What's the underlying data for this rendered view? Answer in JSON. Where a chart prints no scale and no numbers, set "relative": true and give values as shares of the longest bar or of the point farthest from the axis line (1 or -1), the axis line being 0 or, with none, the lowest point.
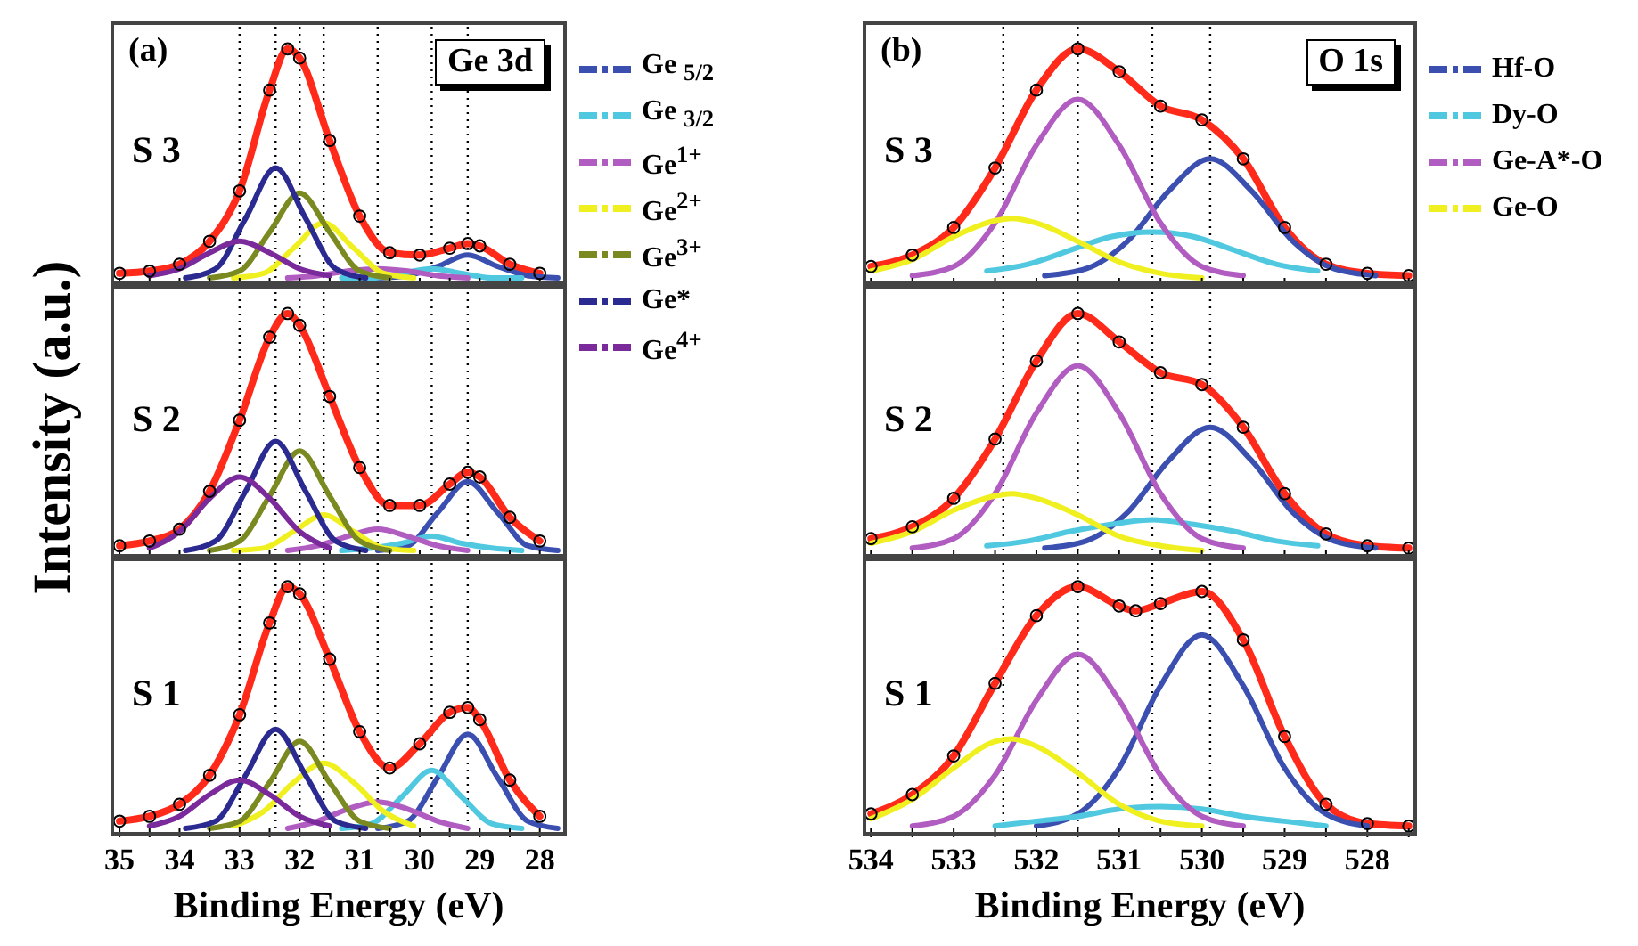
{
  "chart_data": [
    {
      "type": "line",
      "title": "(a)",
      "subtitle": "Ge 3d",
      "ylabel": "Intensity (a.u.)",
      "annotations": [
        "S 3"
      ],
      "relative": true,
      "legend": "right",
      "tick_labels": false,
      "marker": "none",
      "xlim": [
        35.15,
        27.55
      ],
      "xticks": [
        35,
        {
          "value": 34.5,
          "label": null
        },
        34,
        {
          "value": 33.5,
          "label": null
        },
        33,
        {
          "value": 32.5,
          "label": null
        },
        32,
        {
          "value": 31.5,
          "label": null
        },
        31,
        {
          "value": 30.5,
          "label": null
        },
        30,
        {
          "value": 29.5,
          "label": null
        },
        29,
        {
          "value": 28.5,
          "label": null
        },
        28
      ],
      "ref_lines": [
        {
          "axis": "x",
          "value": 33.0,
          "line_style": "dotted",
          "color": "#000000"
        },
        {
          "axis": "x",
          "value": 32.4,
          "line_style": "dotted",
          "color": "#000000"
        },
        {
          "axis": "x",
          "value": 32.0,
          "line_style": "dotted",
          "color": "#000000"
        },
        {
          "axis": "x",
          "value": 31.6,
          "line_style": "dotted",
          "color": "#000000"
        },
        {
          "axis": "x",
          "value": 30.7,
          "line_style": "dotted",
          "color": "#000000"
        },
        {
          "axis": "x",
          "value": 29.8,
          "line_style": "dotted",
          "color": "#000000"
        },
        {
          "axis": "x",
          "value": 29.2,
          "line_style": "dotted",
          "color": "#000000"
        }
      ],
      "series": [
        {
          "type": "scatter",
          "marker": "circle",
          "color": "#000000",
          "x": [
            35,
            34.5,
            34,
            33.5,
            33,
            32.5,
            32.2,
            32,
            31.5,
            31,
            30.5,
            30,
            29.5,
            29.2,
            29,
            28.5,
            28
          ],
          "values": [
            0.02,
            0.03,
            0.06,
            0.16,
            0.38,
            0.82,
            1,
            0.96,
            0.6,
            0.27,
            0.11,
            0.1,
            0.13,
            0.15,
            0.14,
            0.06,
            0.02
          ]
        },
        {
          "color": "#ff2a1a",
          "x": [
            35,
            34.5,
            34,
            33.5,
            33,
            32.5,
            32.2,
            32,
            31.5,
            31,
            30.5,
            30,
            29.5,
            29.2,
            29,
            28.5,
            28
          ],
          "values": [
            0.02,
            0.03,
            0.06,
            0.16,
            0.38,
            0.82,
            1,
            0.96,
            0.6,
            0.27,
            0.11,
            0.1,
            0.13,
            0.15,
            0.14,
            0.06,
            0.02
          ]
        },
        {
          "name": "Ge $_{5/2}$",
          "color": "#3a4fb0",
          "x": [
            30.7,
            30.2,
            29.7,
            29.2,
            28.7,
            28.2,
            27.7
          ],
          "values": [
            0,
            0.01,
            0.05,
            0.1,
            0.05,
            0.01,
            0
          ]
        },
        {
          "name": "Ge $_{3/2}$",
          "color": "#4fc8e0",
          "x": [
            31.3,
            30.8,
            30.3,
            29.8,
            29.3,
            28.8,
            28.3
          ],
          "values": [
            0,
            0,
            0.02,
            0.04,
            0.02,
            0,
            0
          ]
        },
        {
          "name": "Ge$^{1+}$",
          "color": "#b05cc0",
          "x": [
            32.2,
            31.7,
            31.2,
            30.7,
            30.2,
            29.7,
            29.2
          ],
          "values": [
            0,
            0.01,
            0.03,
            0.04,
            0.03,
            0.01,
            0
          ]
        },
        {
          "name": "Ge$^{2+}$",
          "color": "#f0f020",
          "x": [
            33.1,
            32.6,
            32.1,
            31.6,
            31.1,
            30.6,
            30.1
          ],
          "values": [
            0,
            0.02,
            0.13,
            0.24,
            0.13,
            0.02,
            0
          ]
        },
        {
          "name": "Ge$^{3+}$",
          "color": "#7a8a20",
          "x": [
            33.5,
            33,
            32.5,
            32,
            31.5,
            31,
            30.5
          ],
          "values": [
            0,
            0.03,
            0.2,
            0.37,
            0.2,
            0.03,
            0
          ]
        },
        {
          "name": "Ge*",
          "color": "#2a2a90",
          "x": [
            33.9,
            33.4,
            32.9,
            32.4,
            31.9,
            31.4,
            30.9
          ],
          "values": [
            0,
            0.04,
            0.26,
            0.48,
            0.26,
            0.04,
            0
          ]
        },
        {
          "name": "Ge$^{4+}$",
          "color": "#7a2a9a",
          "x": [
            34.5,
            34,
            33.5,
            33,
            32.5,
            32,
            31.5
          ],
          "values": [
            0.01,
            0.04,
            0.11,
            0.16,
            0.11,
            0.04,
            0.01
          ]
        }
      ]
    },
    {
      "type": "line",
      "annotations": [
        "S 2"
      ],
      "relative": true,
      "tick_labels": false,
      "marker": "none",
      "xlim": [
        35.15,
        27.55
      ],
      "xticks": [
        35,
        {
          "value": 34.5,
          "label": null
        },
        34,
        {
          "value": 33.5,
          "label": null
        },
        33,
        {
          "value": 32.5,
          "label": null
        },
        32,
        {
          "value": 31.5,
          "label": null
        },
        31,
        {
          "value": 30.5,
          "label": null
        },
        30,
        {
          "value": 29.5,
          "label": null
        },
        29,
        {
          "value": 28.5,
          "label": null
        },
        28
      ],
      "ref_lines": [
        {
          "axis": "x",
          "value": 33.0,
          "line_style": "dotted",
          "color": "#000000"
        },
        {
          "axis": "x",
          "value": 32.4,
          "line_style": "dotted",
          "color": "#000000"
        },
        {
          "axis": "x",
          "value": 32.0,
          "line_style": "dotted",
          "color": "#000000"
        },
        {
          "axis": "x",
          "value": 31.6,
          "line_style": "dotted",
          "color": "#000000"
        },
        {
          "axis": "x",
          "value": 30.7,
          "line_style": "dotted",
          "color": "#000000"
        },
        {
          "axis": "x",
          "value": 29.8,
          "line_style": "dotted",
          "color": "#000000"
        },
        {
          "axis": "x",
          "value": 29.2,
          "line_style": "dotted",
          "color": "#000000"
        }
      ],
      "series": [
        {
          "type": "scatter",
          "marker": "circle",
          "color": "#000000",
          "x": [
            35,
            34.5,
            34,
            33.5,
            33,
            32.5,
            32.2,
            32,
            31.5,
            31,
            30.5,
            30,
            29.5,
            29.2,
            29,
            28.5,
            28
          ],
          "values": [
            0.02,
            0.04,
            0.09,
            0.25,
            0.55,
            0.9,
            1,
            0.95,
            0.65,
            0.35,
            0.19,
            0.19,
            0.28,
            0.33,
            0.31,
            0.14,
            0.04
          ]
        },
        {
          "color": "#ff2a1a",
          "x": [
            35,
            34.5,
            34,
            33.5,
            33,
            32.5,
            32.2,
            32,
            31.5,
            31,
            30.5,
            30,
            29.5,
            29.2,
            29,
            28.5,
            28
          ],
          "values": [
            0.02,
            0.04,
            0.09,
            0.25,
            0.55,
            0.9,
            1,
            0.95,
            0.65,
            0.35,
            0.19,
            0.19,
            0.28,
            0.33,
            0.31,
            0.14,
            0.04
          ]
        },
        {
          "color": "#3a4fb0",
          "x": [
            30.7,
            30.2,
            29.7,
            29.2,
            28.7,
            28.2,
            27.7
          ],
          "values": [
            0,
            0.02,
            0.16,
            0.29,
            0.16,
            0.02,
            0
          ]
        },
        {
          "color": "#4fc8e0",
          "x": [
            31.3,
            30.8,
            30.3,
            29.8,
            29.3,
            28.8,
            28.3
          ],
          "values": [
            0,
            0.01,
            0.03,
            0.06,
            0.03,
            0.01,
            0
          ]
        },
        {
          "color": "#b05cc0",
          "x": [
            32.2,
            31.7,
            31.2,
            30.7,
            30.2,
            29.7,
            29.2
          ],
          "values": [
            0,
            0.02,
            0.06,
            0.09,
            0.06,
            0.02,
            0
          ]
        },
        {
          "color": "#f0f020",
          "x": [
            33.1,
            32.6,
            32.1,
            31.6,
            31.1,
            30.6,
            30.1
          ],
          "values": [
            0,
            0.01,
            0.08,
            0.15,
            0.08,
            0.01,
            0
          ]
        },
        {
          "color": "#7a8a20",
          "x": [
            33.5,
            33,
            32.5,
            32,
            31.5,
            31,
            30.5
          ],
          "values": [
            0,
            0.04,
            0.23,
            0.42,
            0.23,
            0.04,
            0
          ]
        },
        {
          "color": "#2a2a90",
          "x": [
            33.9,
            33.4,
            32.9,
            32.4,
            31.9,
            31.4,
            30.9
          ],
          "values": [
            0,
            0.04,
            0.25,
            0.46,
            0.25,
            0.04,
            0
          ]
        },
        {
          "color": "#7a2a9a",
          "x": [
            34.5,
            34,
            33.5,
            33,
            32.5,
            32,
            31.5
          ],
          "values": [
            0.01,
            0.08,
            0.22,
            0.31,
            0.22,
            0.08,
            0.01
          ]
        }
      ]
    },
    {
      "type": "line",
      "xlabel": "Binding Energy (eV)",
      "annotations": [
        "S 1"
      ],
      "relative": true,
      "tick_labels": "x",
      "marker": "none",
      "xlim": [
        35.15,
        27.55
      ],
      "xticks": [
        35,
        {
          "value": 34.5,
          "label": null
        },
        34,
        {
          "value": 33.5,
          "label": null
        },
        33,
        {
          "value": 32.5,
          "label": null
        },
        32,
        {
          "value": 31.5,
          "label": null
        },
        31,
        {
          "value": 30.5,
          "label": null
        },
        30,
        {
          "value": 29.5,
          "label": null
        },
        29,
        {
          "value": 28.5,
          "label": null
        },
        28
      ],
      "ref_lines": [
        {
          "axis": "x",
          "value": 33.0,
          "line_style": "dotted",
          "color": "#000000"
        },
        {
          "axis": "x",
          "value": 32.4,
          "line_style": "dotted",
          "color": "#000000"
        },
        {
          "axis": "x",
          "value": 32.0,
          "line_style": "dotted",
          "color": "#000000"
        },
        {
          "axis": "x",
          "value": 31.6,
          "line_style": "dotted",
          "color": "#000000"
        },
        {
          "axis": "x",
          "value": 30.7,
          "line_style": "dotted",
          "color": "#000000"
        },
        {
          "axis": "x",
          "value": 29.8,
          "line_style": "dotted",
          "color": "#000000"
        },
        {
          "axis": "x",
          "value": 29.2,
          "line_style": "dotted",
          "color": "#000000"
        }
      ],
      "series": [
        {
          "type": "scatter",
          "marker": "circle",
          "color": "#000000",
          "x": [
            35,
            34.5,
            34,
            33.5,
            33,
            32.5,
            32.2,
            32,
            31.5,
            31,
            30.5,
            30,
            29.5,
            29.2,
            29,
            28.5,
            28
          ],
          "values": [
            0.03,
            0.05,
            0.1,
            0.22,
            0.47,
            0.85,
            1,
            0.97,
            0.7,
            0.4,
            0.25,
            0.35,
            0.48,
            0.5,
            0.45,
            0.2,
            0.05
          ]
        },
        {
          "color": "#ff2a1a",
          "x": [
            35,
            34.5,
            34,
            33.5,
            33,
            32.5,
            32.2,
            32,
            31.5,
            31,
            30.5,
            30,
            29.5,
            29.2,
            29,
            28.5,
            28
          ],
          "values": [
            0.03,
            0.05,
            0.1,
            0.22,
            0.47,
            0.85,
            1,
            0.97,
            0.7,
            0.4,
            0.25,
            0.35,
            0.48,
            0.5,
            0.45,
            0.2,
            0.05
          ]
        },
        {
          "color": "#3a4fb0",
          "x": [
            30.7,
            30.2,
            29.7,
            29.2,
            28.7,
            28.2,
            27.7
          ],
          "values": [
            0,
            0.03,
            0.21,
            0.39,
            0.21,
            0.03,
            0
          ]
        },
        {
          "color": "#4fc8e0",
          "x": [
            31.3,
            30.8,
            30.3,
            29.8,
            29.3,
            28.8,
            28.3
          ],
          "values": [
            0,
            0.02,
            0.13,
            0.24,
            0.13,
            0.02,
            0
          ]
        },
        {
          "color": "#b05cc0",
          "x": [
            32.2,
            31.7,
            31.2,
            30.7,
            30.2,
            29.7,
            29.2
          ],
          "values": [
            0,
            0.03,
            0.08,
            0.11,
            0.08,
            0.03,
            0
          ]
        },
        {
          "color": "#f0f020",
          "x": [
            33.1,
            32.6,
            32.1,
            31.6,
            31.1,
            30.6,
            30.1
          ],
          "values": [
            0.01,
            0.07,
            0.19,
            0.27,
            0.19,
            0.07,
            0.01
          ]
        },
        {
          "color": "#7a8a20",
          "x": [
            33.5,
            33,
            32.5,
            32,
            31.5,
            31,
            30.5
          ],
          "values": [
            0,
            0.03,
            0.19,
            0.36,
            0.19,
            0.03,
            0
          ]
        },
        {
          "color": "#2a2a90",
          "x": [
            33.9,
            33.4,
            32.9,
            32.4,
            31.9,
            31.4,
            30.9
          ],
          "values": [
            0,
            0.03,
            0.22,
            0.41,
            0.22,
            0.03,
            0
          ]
        },
        {
          "color": "#7a2a9a",
          "x": [
            34.5,
            34,
            33.5,
            33,
            32.5,
            32,
            31.5
          ],
          "values": [
            0.01,
            0.05,
            0.14,
            0.2,
            0.14,
            0.05,
            0.01
          ]
        }
      ]
    },
    {
      "type": "line",
      "title": "(b)",
      "subtitle": "O 1s",
      "annotations": [
        "S 3"
      ],
      "relative": true,
      "legend": "right",
      "tick_labels": false,
      "marker": "none",
      "xlim": [
        534.1,
        527.4
      ],
      "xticks": [
        534,
        {
          "value": 533.5,
          "label": null
        },
        533,
        {
          "value": 532.5,
          "label": null
        },
        532,
        {
          "value": 531.5,
          "label": null
        },
        531,
        {
          "value": 530.5,
          "label": null
        },
        530,
        {
          "value": 529.5,
          "label": null
        },
        529,
        {
          "value": 528.5,
          "label": null
        },
        528,
        {
          "value": 527.5,
          "label": null
        }
      ],
      "ref_lines": [
        {
          "axis": "x",
          "value": 532.4,
          "line_style": "dotted",
          "color": "#000000"
        },
        {
          "axis": "x",
          "value": 531.5,
          "line_style": "dotted",
          "color": "#000000"
        },
        {
          "axis": "x",
          "value": 530.6,
          "line_style": "dotted",
          "color": "#000000"
        },
        {
          "axis": "x",
          "value": 529.9,
          "line_style": "dotted",
          "color": "#000000"
        }
      ],
      "series": [
        {
          "type": "scatter",
          "marker": "circle",
          "color": "#000000",
          "x": [
            534,
            533.5,
            533,
            532.5,
            532,
            531.5,
            531,
            530.5,
            530,
            529.5,
            529,
            528.5,
            528,
            527.5
          ],
          "values": [
            0.05,
            0.1,
            0.22,
            0.48,
            0.82,
            1,
            0.9,
            0.75,
            0.69,
            0.52,
            0.22,
            0.06,
            0.02,
            0.01
          ]
        },
        {
          "color": "#ff2a1a",
          "x": [
            534,
            533.5,
            533,
            532.5,
            532,
            531.5,
            531,
            530.5,
            530,
            529.5,
            529,
            528.5,
            528,
            527.5
          ],
          "values": [
            0.05,
            0.1,
            0.22,
            0.48,
            0.82,
            1,
            0.9,
            0.75,
            0.69,
            0.52,
            0.22,
            0.06,
            0.02,
            0.01
          ]
        },
        {
          "name": "Hf-O",
          "color": "#3a4fb0",
          "x": [
            531.9,
            531.4,
            530.9,
            530.4,
            529.9,
            529.4,
            528.9,
            528.4,
            527.9
          ],
          "values": [
            0.01,
            0.04,
            0.16,
            0.38,
            0.52,
            0.38,
            0.16,
            0.04,
            0.01
          ]
        },
        {
          "name": "Dy-O",
          "color": "#4fc8e0",
          "x": [
            532.6,
            532.1,
            531.6,
            531.1,
            530.6,
            530.1,
            529.6,
            529.1,
            528.6
          ],
          "values": [
            0.03,
            0.06,
            0.12,
            0.18,
            0.2,
            0.18,
            0.12,
            0.06,
            0.03
          ]
        },
        {
          "name": "Ge-A*-O",
          "color": "#b05cc0",
          "x": [
            533.5,
            533,
            532.5,
            532,
            531.5,
            531,
            530.5,
            530,
            529.5
          ],
          "values": [
            0.01,
            0.05,
            0.24,
            0.58,
            0.78,
            0.58,
            0.24,
            0.05,
            0.01
          ]
        },
        {
          "name": "Ge-O",
          "color": "#f0f020",
          "x": [
            534,
            533.5,
            533,
            532.5,
            532.3,
            532,
            531.5,
            531,
            530.5,
            530
          ],
          "values": [
            0.03,
            0.08,
            0.18,
            0.25,
            0.26,
            0.24,
            0.16,
            0.07,
            0.02,
            0
          ]
        }
      ]
    },
    {
      "type": "line",
      "annotations": [
        "S 2"
      ],
      "relative": true,
      "tick_labels": false,
      "marker": "none",
      "xlim": [
        534.1,
        527.4
      ],
      "xticks": [
        534,
        {
          "value": 533.5,
          "label": null
        },
        533,
        {
          "value": 532.5,
          "label": null
        },
        532,
        {
          "value": 531.5,
          "label": null
        },
        531,
        {
          "value": 530.5,
          "label": null
        },
        530,
        {
          "value": 529.5,
          "label": null
        },
        529,
        {
          "value": 528.5,
          "label": null
        },
        528,
        {
          "value": 527.5,
          "label": null
        }
      ],
      "ref_lines": [
        {
          "axis": "x",
          "value": 532.4,
          "line_style": "dotted",
          "color": "#000000"
        },
        {
          "axis": "x",
          "value": 531.5,
          "line_style": "dotted",
          "color": "#000000"
        },
        {
          "axis": "x",
          "value": 530.6,
          "line_style": "dotted",
          "color": "#000000"
        },
        {
          "axis": "x",
          "value": 529.9,
          "line_style": "dotted",
          "color": "#000000"
        }
      ],
      "series": [
        {
          "type": "scatter",
          "marker": "circle",
          "color": "#000000",
          "x": [
            534,
            533.5,
            533,
            532.5,
            532,
            531.5,
            531,
            530.5,
            530,
            529.5,
            529,
            528.5,
            528,
            527.5
          ],
          "values": [
            0.05,
            0.1,
            0.22,
            0.47,
            0.8,
            1,
            0.88,
            0.75,
            0.7,
            0.52,
            0.24,
            0.07,
            0.02,
            0.01
          ]
        },
        {
          "color": "#ff2a1a",
          "x": [
            534,
            533.5,
            533,
            532.5,
            532,
            531.5,
            531,
            530.5,
            530,
            529.5,
            529,
            528.5,
            528,
            527.5
          ],
          "values": [
            0.05,
            0.1,
            0.22,
            0.47,
            0.8,
            1,
            0.88,
            0.75,
            0.7,
            0.52,
            0.24,
            0.07,
            0.02,
            0.01
          ]
        },
        {
          "color": "#3a4fb0",
          "x": [
            531.9,
            531.4,
            530.9,
            530.4,
            529.9,
            529.4,
            528.9,
            528.4,
            527.9
          ],
          "values": [
            0.01,
            0.04,
            0.16,
            0.38,
            0.52,
            0.38,
            0.16,
            0.04,
            0.01
          ]
        },
        {
          "color": "#4fc8e0",
          "x": [
            532.6,
            532.1,
            531.6,
            531.1,
            530.6,
            530.1,
            529.6,
            529.1,
            528.6
          ],
          "values": [
            0.02,
            0.04,
            0.08,
            0.11,
            0.13,
            0.11,
            0.08,
            0.04,
            0.02
          ]
        },
        {
          "color": "#b05cc0",
          "x": [
            533.5,
            533,
            532.5,
            532,
            531.5,
            531,
            530.5,
            530,
            529.5
          ],
          "values": [
            0.01,
            0.05,
            0.24,
            0.58,
            0.78,
            0.58,
            0.24,
            0.05,
            0.01
          ]
        },
        {
          "color": "#f0f020",
          "x": [
            534,
            533.5,
            533,
            532.5,
            532.3,
            532,
            531.5,
            531,
            530.5,
            530
          ],
          "values": [
            0.03,
            0.08,
            0.17,
            0.23,
            0.24,
            0.22,
            0.15,
            0.06,
            0.02,
            0
          ]
        }
      ]
    },
    {
      "type": "line",
      "xlabel": "Binding Energy (eV)",
      "annotations": [
        "S 1"
      ],
      "relative": true,
      "tick_labels": "x",
      "marker": "none",
      "xlim": [
        534.1,
        527.4
      ],
      "xticks": [
        534,
        {
          "value": 533.5,
          "label": null
        },
        533,
        {
          "value": 532.5,
          "label": null
        },
        532,
        {
          "value": 531.5,
          "label": null
        },
        531,
        {
          "value": 530.5,
          "label": null
        },
        530,
        {
          "value": 529.5,
          "label": null
        },
        529,
        {
          "value": 528.5,
          "label": null
        },
        528,
        {
          "value": 527.5,
          "label": null
        }
      ],
      "ref_lines": [
        {
          "axis": "x",
          "value": 532.4,
          "line_style": "dotted",
          "color": "#000000"
        },
        {
          "axis": "x",
          "value": 531.5,
          "line_style": "dotted",
          "color": "#000000"
        },
        {
          "axis": "x",
          "value": 530.6,
          "line_style": "dotted",
          "color": "#000000"
        },
        {
          "axis": "x",
          "value": 529.9,
          "line_style": "dotted",
          "color": "#000000"
        }
      ],
      "series": [
        {
          "type": "scatter",
          "marker": "circle",
          "color": "#000000",
          "x": [
            534,
            533.5,
            533,
            532.5,
            532,
            531.5,
            531,
            530.8,
            530.5,
            530,
            529.5,
            529,
            528.5,
            528,
            527.5
          ],
          "values": [
            0.06,
            0.14,
            0.3,
            0.6,
            0.88,
            1,
            0.92,
            0.9,
            0.93,
            0.98,
            0.78,
            0.38,
            0.1,
            0.02,
            0.01
          ]
        },
        {
          "color": "#ff2a1a",
          "x": [
            534,
            533.5,
            533,
            532.5,
            532,
            531.5,
            531,
            530.8,
            530.5,
            530,
            529.5,
            529,
            528.5,
            528,
            527.5
          ],
          "values": [
            0.06,
            0.14,
            0.3,
            0.6,
            0.88,
            1,
            0.92,
            0.9,
            0.93,
            0.98,
            0.78,
            0.38,
            0.1,
            0.02,
            0.01
          ]
        },
        {
          "color": "#3a4fb0",
          "x": [
            532,
            531.5,
            531,
            530.5,
            530,
            529.5,
            529,
            528.5,
            528
          ],
          "values": [
            0.01,
            0.06,
            0.25,
            0.59,
            0.8,
            0.59,
            0.25,
            0.06,
            0.01
          ]
        },
        {
          "color": "#4fc8e0",
          "x": [
            532.5,
            532,
            531.5,
            531,
            530.5,
            530,
            529.5,
            529,
            528.5
          ],
          "values": [
            0.01,
            0.03,
            0.05,
            0.08,
            0.09,
            0.08,
            0.05,
            0.03,
            0.01
          ]
        },
        {
          "color": "#b05cc0",
          "x": [
            533.5,
            533,
            532.5,
            532,
            531.5,
            531,
            530.5,
            530,
            529.5
          ],
          "values": [
            0.01,
            0.05,
            0.22,
            0.53,
            0.72,
            0.53,
            0.22,
            0.05,
            0.01
          ]
        },
        {
          "color": "#f0f020",
          "x": [
            534,
            533.5,
            533,
            532.5,
            532.3,
            532,
            531.5,
            531,
            530.5,
            530
          ],
          "values": [
            0.04,
            0.12,
            0.25,
            0.36,
            0.37,
            0.34,
            0.23,
            0.1,
            0.03,
            0.01
          ]
        }
      ]
    }
  ]
}
